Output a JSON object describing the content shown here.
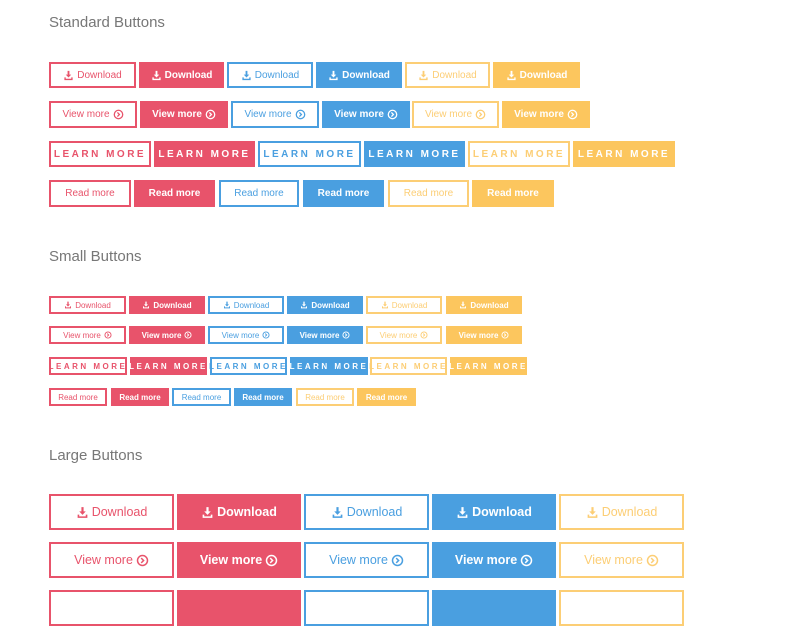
{
  "colors": {
    "red": "#e8536b",
    "blue": "#4a9fe0",
    "yellow": "#fcc65e"
  },
  "variants": [
    "red-outline",
    "red-solid",
    "blue-outline",
    "blue-solid",
    "yellow-outline",
    "yellow-solid"
  ],
  "sections": [
    {
      "title": "Standard Buttons",
      "rows": [
        {
          "label": "Download",
          "icon": "download-icon"
        },
        {
          "label": "View more",
          "icon": "circle-arrow-icon"
        },
        {
          "label": "LEARN MORE",
          "icon": ""
        },
        {
          "label": "Read more",
          "icon": ""
        }
      ]
    },
    {
      "title": "Small Buttons",
      "rows": [
        {
          "label": "Download",
          "icon": "download-icon"
        },
        {
          "label": "View more",
          "icon": "circle-arrow-icon"
        },
        {
          "label": "LEARN MORE",
          "icon": ""
        },
        {
          "label": "Read more",
          "icon": ""
        }
      ]
    },
    {
      "title": "Large Buttons",
      "rows": [
        {
          "label": "Download",
          "icon": "download-icon"
        },
        {
          "label": "View more",
          "icon": "circle-arrow-icon"
        },
        {
          "label": "",
          "icon": ""
        }
      ]
    }
  ]
}
